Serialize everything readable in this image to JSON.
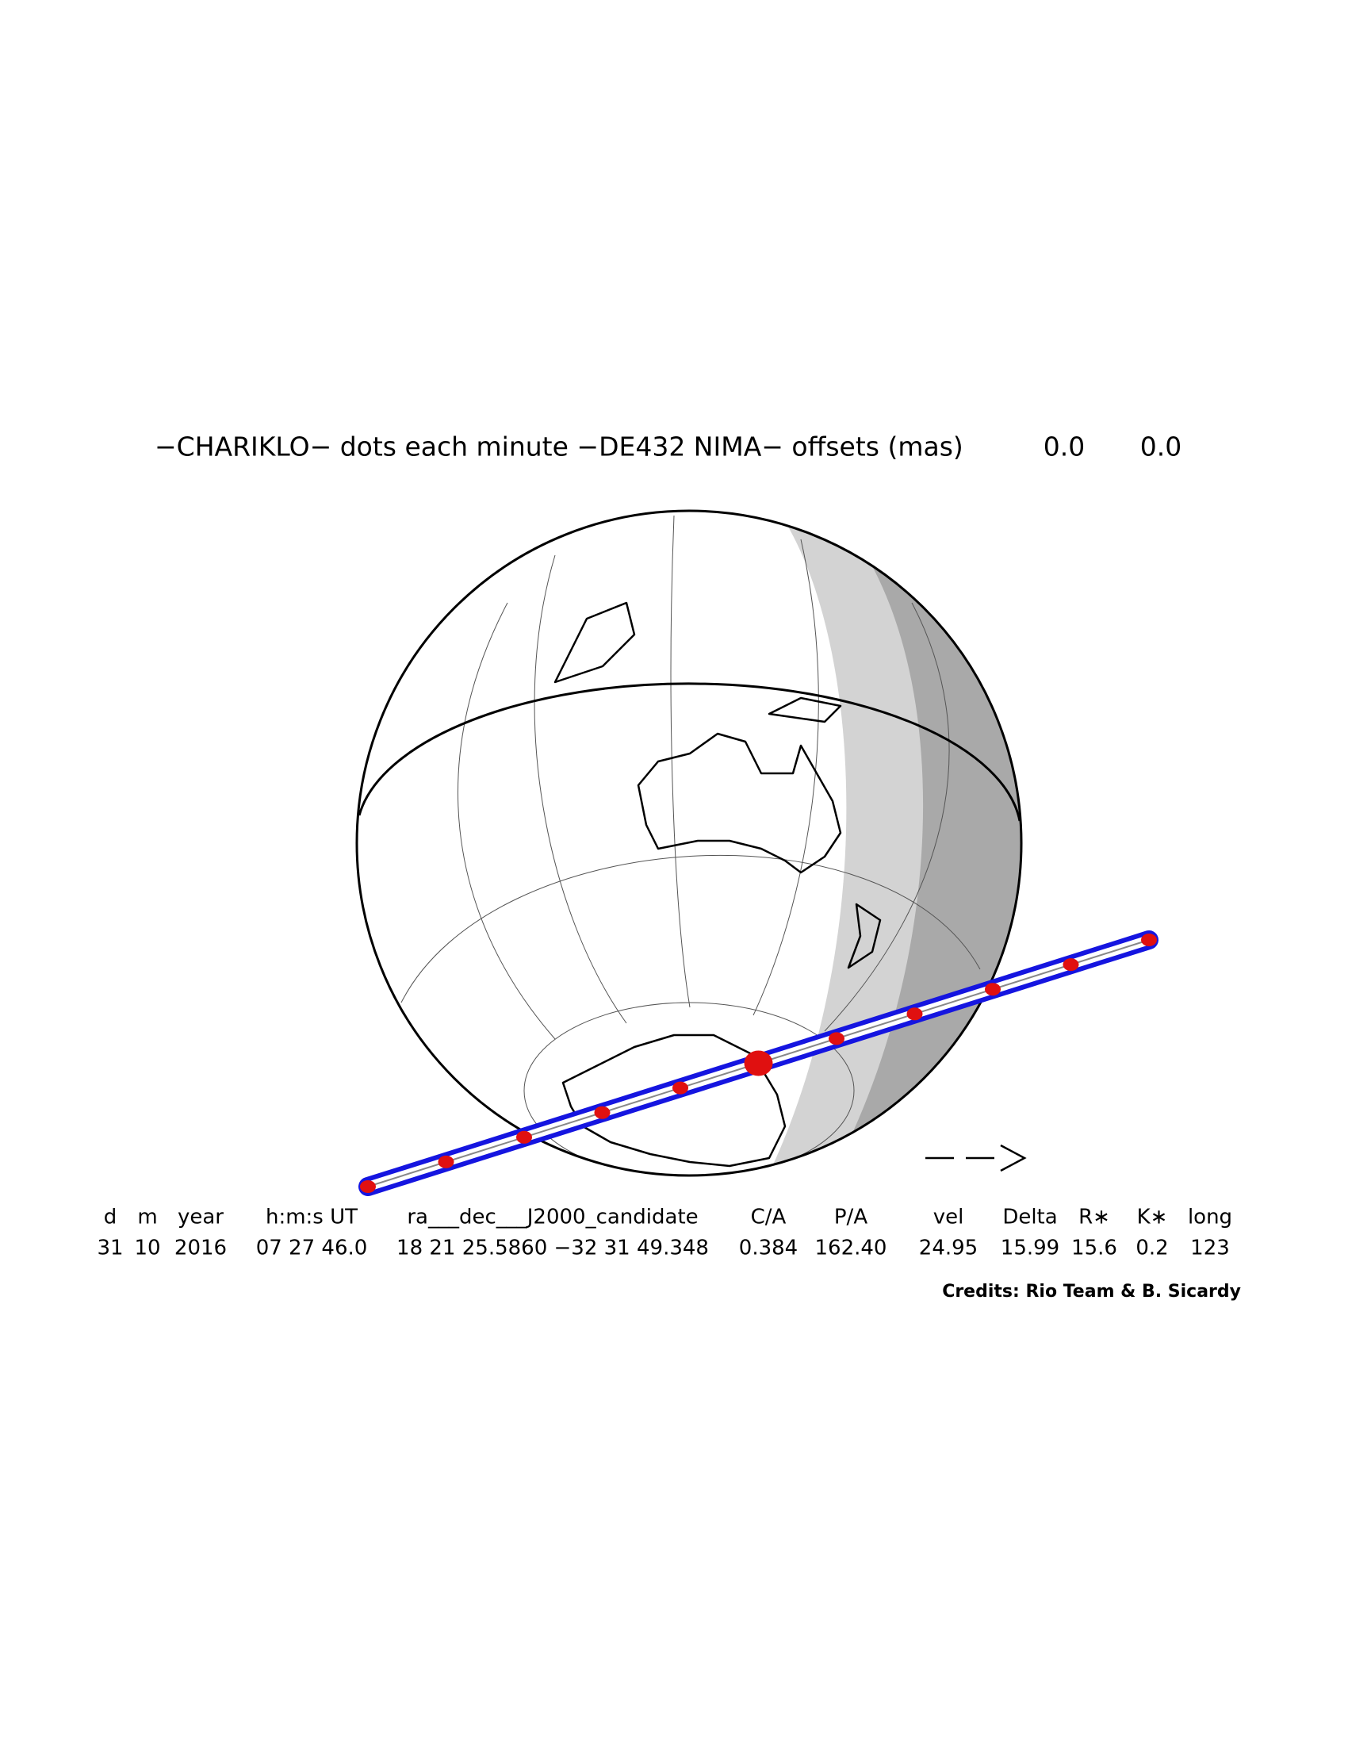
{
  "title": "−CHARIKLO− dots each minute −DE432 NIMA− offsets (mas)",
  "offsets": [
    "0.0",
    "0.0"
  ],
  "table": {
    "headers": [
      "d",
      "m",
      "year",
      "h:m:s UT",
      "ra___dec___J2000_candidate",
      "C/A",
      "P/A",
      "vel",
      "Delta",
      "R∗",
      "K∗",
      "long"
    ],
    "values": [
      "31",
      "10",
      "2016",
      "07 27 46.0",
      "18 21 25.5860 −32 31 49.348",
      "0.384",
      "162.40",
      "24.95",
      "15.99",
      "15.6",
      "0.2",
      "123"
    ]
  },
  "credits": "Credits: Rio Team & B. Sicardy"
}
